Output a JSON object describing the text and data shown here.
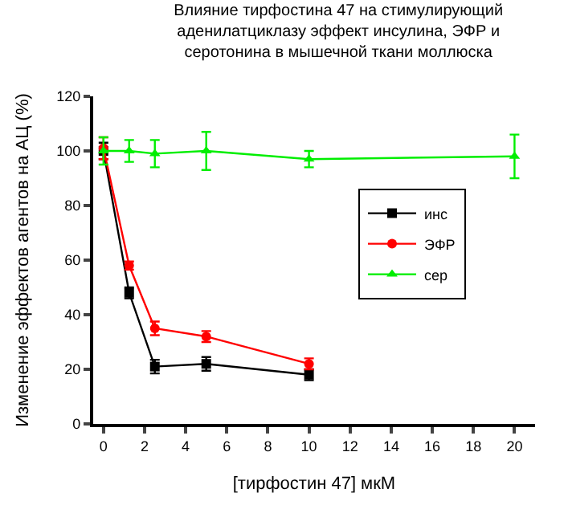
{
  "chart_data": {
    "type": "line",
    "title": "Влияние тирфостина 47 на стимулирующий\nаденилатциклазу эффект инсулина, ЭФР и\nсеротонина в мышечной ткани моллюска",
    "xlabel": "[тирфостин 47] мкМ",
    "ylabel": "Изменение эффектов агентов на АЦ (%)",
    "series": [
      {
        "name": "инс",
        "color": "#000000",
        "marker": "square",
        "x": [
          0,
          1.25,
          2.5,
          5,
          10
        ],
        "values": [
          100,
          48,
          21,
          22,
          18
        ],
        "errors": [
          3,
          2,
          2.5,
          2.5,
          2
        ]
      },
      {
        "name": "ЭФР",
        "color": "#ff0000",
        "marker": "circle",
        "x": [
          0,
          1.25,
          2.5,
          5,
          10
        ],
        "values": [
          101,
          58,
          35,
          32,
          22
        ],
        "errors": [
          4,
          1.5,
          2.5,
          2,
          2
        ]
      },
      {
        "name": "сер",
        "color": "#00ee00",
        "marker": "triangle",
        "x": [
          0,
          1.25,
          2.5,
          5,
          10,
          20
        ],
        "values": [
          100,
          100,
          99,
          100,
          97,
          98
        ],
        "errors": [
          5,
          4,
          5,
          7,
          3,
          8
        ]
      }
    ],
    "xlim": [
      -0.5,
      21
    ],
    "ylim": [
      0,
      120
    ],
    "xticks": [
      0,
      2,
      4,
      6,
      8,
      10,
      12,
      14,
      16,
      18,
      20
    ],
    "yticks": [
      0,
      20,
      40,
      60,
      80,
      100,
      120
    ],
    "legend": "right"
  }
}
